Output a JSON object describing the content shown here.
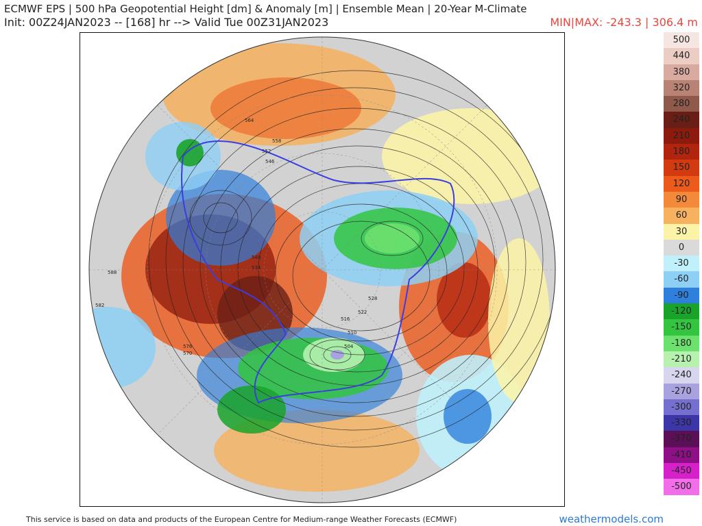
{
  "header": {
    "title": "ECMWF EPS | 500 hPa Geopotential Height [dm] & Anomaly [m] | Ensemble Mean | 20-Year M-Climate",
    "subtitle": "Init: 00Z24JAN2023 -- [168] hr --> Valid Tue 00Z31JAN2023",
    "minmax": "MIN|MAX: -243.3 | 306.4 m"
  },
  "legend": {
    "items": [
      {
        "label": "500",
        "color": "#f5e6e2"
      },
      {
        "label": "440",
        "color": "#ebcdc4"
      },
      {
        "label": "380",
        "color": "#d9aba0"
      },
      {
        "label": "320",
        "color": "#b88374"
      },
      {
        "label": "280",
        "color": "#8f5a4c"
      },
      {
        "label": "240",
        "color": "#6a1f16"
      },
      {
        "label": "210",
        "color": "#8d1b0d"
      },
      {
        "label": "180",
        "color": "#b1240e"
      },
      {
        "label": "150",
        "color": "#d43a10"
      },
      {
        "label": "120",
        "color": "#ec5a1c"
      },
      {
        "label": "90",
        "color": "#f28a3a"
      },
      {
        "label": "60",
        "color": "#f6b25e"
      },
      {
        "label": "30",
        "color": "#fbf3a7"
      },
      {
        "label": "0",
        "color": "#dadada"
      },
      {
        "label": "-30",
        "color": "#bff0fb"
      },
      {
        "label": "-60",
        "color": "#8ed0f5"
      },
      {
        "label": "-90",
        "color": "#2f7fdc"
      },
      {
        "label": "-120",
        "color": "#19a32a"
      },
      {
        "label": "-150",
        "color": "#33c53f"
      },
      {
        "label": "-180",
        "color": "#6de16e"
      },
      {
        "label": "-210",
        "color": "#b6f1b0"
      },
      {
        "label": "-240",
        "color": "#d8d6ef"
      },
      {
        "label": "-270",
        "color": "#a8a3df"
      },
      {
        "label": "-300",
        "color": "#7570cf"
      },
      {
        "label": "-330",
        "color": "#3d36a8"
      },
      {
        "label": "-370",
        "color": "#5a0f56"
      },
      {
        "label": "-410",
        "color": "#8e0f86"
      },
      {
        "label": "-450",
        "color": "#d620ca"
      },
      {
        "label": "-500",
        "color": "#f26ee8"
      }
    ]
  },
  "map": {
    "contour_labels": [
      "588",
      "582",
      "576",
      "570",
      "564",
      "558",
      "552",
      "546",
      "540",
      "534",
      "528",
      "522",
      "516",
      "510",
      "504"
    ]
  },
  "footer": {
    "attribution": "This service is based on data and products of the European Centre for Medium-range Weather Forecasts (ECMWF)",
    "site": "weathermodels.com"
  }
}
